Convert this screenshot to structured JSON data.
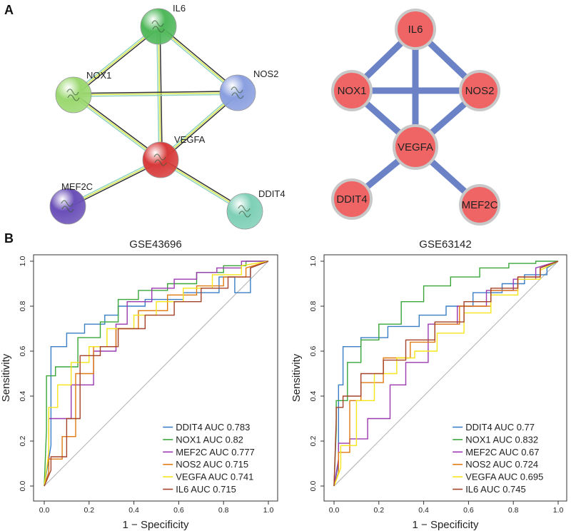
{
  "panel_labels": {
    "a": "A",
    "b": "B"
  },
  "colors": {
    "edge_blue": "#6b82c7",
    "node_red": "#ef6464",
    "node_border": "#c8c8c8",
    "diag": "#b0b0b0",
    "DDIT4": "#3a7fc5",
    "NOX1": "#3aa63a",
    "MEF2C": "#9b3ab0",
    "NOS2": "#e07a10",
    "VEGFA": "#f5e51a",
    "IL6": "#a5422a"
  },
  "string_network": {
    "nodes": [
      {
        "id": "IL6",
        "label": "IL6",
        "color": "#4fb85a",
        "icon": "protein-structure-icon"
      },
      {
        "id": "NOX1",
        "label": "NOX1",
        "color": "#9bd870",
        "icon": "protein-structure-icon"
      },
      {
        "id": "NOS2",
        "label": "NOS2",
        "color": "#8a9fe0",
        "icon": "protein-structure-icon"
      },
      {
        "id": "VEGFA",
        "label": "VEGFA",
        "color": "#d83a3a",
        "icon": "protein-structure-icon"
      },
      {
        "id": "MEF2C",
        "label": "MEF2C",
        "color": "#6a4fb8",
        "icon": "protein-structure-icon"
      },
      {
        "id": "DDIT4",
        "label": "DDIT4",
        "color": "#7ecfb6",
        "icon": "protein-structure-icon"
      }
    ],
    "edges": [
      [
        "IL6",
        "NOX1"
      ],
      [
        "IL6",
        "NOS2"
      ],
      [
        "IL6",
        "VEGFA"
      ],
      [
        "NOX1",
        "NOS2"
      ],
      [
        "NOX1",
        "VEGFA"
      ],
      [
        "NOS2",
        "VEGFA"
      ],
      [
        "VEGFA",
        "MEF2C"
      ],
      [
        "VEGFA",
        "DDIT4"
      ]
    ]
  },
  "hub_network": {
    "nodes": [
      {
        "id": "IL6",
        "label": "IL6"
      },
      {
        "id": "NOX1",
        "label": "NOX1"
      },
      {
        "id": "NOS2",
        "label": "NOS2"
      },
      {
        "id": "VEGFA",
        "label": "VEGFA"
      },
      {
        "id": "DDIT4",
        "label": "DDIT4"
      },
      {
        "id": "MEF2C",
        "label": "MEF2C"
      }
    ],
    "edges": [
      [
        "IL6",
        "NOX1"
      ],
      [
        "IL6",
        "NOS2"
      ],
      [
        "IL6",
        "VEGFA"
      ],
      [
        "NOX1",
        "NOS2"
      ],
      [
        "NOX1",
        "VEGFA"
      ],
      [
        "NOS2",
        "VEGFA"
      ],
      [
        "VEGFA",
        "DDIT4"
      ],
      [
        "VEGFA",
        "MEF2C"
      ]
    ]
  },
  "chart_data": [
    {
      "type": "line",
      "title": "GSE43696",
      "xlabel": "1 − Specificity",
      "ylabel": "Sensitivity",
      "xlim": [
        0,
        1
      ],
      "ylim": [
        0,
        1
      ],
      "xticks": [
        "0.0",
        "0.2",
        "0.4",
        "0.6",
        "0.8",
        "1.0"
      ],
      "yticks": [
        "0.0",
        "0.2",
        "0.4",
        "0.6",
        "0.8",
        "1.0"
      ],
      "legend_position": "bottom-right",
      "series": [
        {
          "name": "DDIT4",
          "legend": "DDIT4 AUC 0.783",
          "color": "#3a7fc5",
          "x": [
            0,
            0.03,
            0.03,
            0.1,
            0.1,
            0.18,
            0.18,
            0.27,
            0.27,
            0.33,
            0.33,
            0.45,
            0.45,
            0.62,
            0.62,
            0.78,
            0.78,
            0.85,
            0.85,
            0.92,
            0.92,
            1
          ],
          "y": [
            0,
            0.18,
            0.62,
            0.62,
            0.68,
            0.68,
            0.72,
            0.72,
            0.76,
            0.76,
            0.8,
            0.8,
            0.83,
            0.83,
            0.86,
            0.86,
            0.93,
            0.93,
            0.86,
            0.86,
            0.97,
            1
          ]
        },
        {
          "name": "NOX1",
          "legend": "NOX1 AUC 0.82",
          "color": "#3aa63a",
          "x": [
            0,
            0.01,
            0.01,
            0.05,
            0.05,
            0.15,
            0.15,
            0.25,
            0.25,
            0.33,
            0.33,
            0.42,
            0.42,
            0.55,
            0.55,
            0.68,
            0.68,
            0.8,
            0.8,
            0.9,
            0.9,
            1
          ],
          "y": [
            0,
            0.25,
            0.49,
            0.49,
            0.53,
            0.53,
            0.66,
            0.66,
            0.73,
            0.73,
            0.83,
            0.83,
            0.87,
            0.87,
            0.9,
            0.9,
            0.95,
            0.95,
            0.98,
            0.98,
            1,
            1
          ]
        },
        {
          "name": "MEF2C",
          "legend": "MEF2C AUC 0.777",
          "color": "#9b3ab0",
          "x": [
            0,
            0.02,
            0.02,
            0.12,
            0.12,
            0.22,
            0.22,
            0.32,
            0.32,
            0.37,
            0.37,
            0.48,
            0.48,
            0.58,
            0.58,
            0.68,
            0.68,
            0.77,
            0.77,
            0.88,
            0.88,
            1
          ],
          "y": [
            0,
            0.06,
            0.3,
            0.3,
            0.45,
            0.45,
            0.6,
            0.6,
            0.72,
            0.72,
            0.82,
            0.82,
            0.88,
            0.88,
            0.92,
            0.92,
            0.95,
            0.95,
            0.97,
            0.97,
            1,
            1
          ]
        },
        {
          "name": "NOS2",
          "legend": "NOS2 AUC 0.715",
          "color": "#e07a10",
          "x": [
            0,
            0.02,
            0.02,
            0.08,
            0.08,
            0.14,
            0.14,
            0.22,
            0.22,
            0.32,
            0.32,
            0.42,
            0.42,
            0.55,
            0.55,
            0.68,
            0.68,
            0.8,
            0.8,
            0.9,
            0.9,
            1
          ],
          "y": [
            0,
            0.06,
            0.12,
            0.12,
            0.22,
            0.22,
            0.5,
            0.5,
            0.62,
            0.62,
            0.7,
            0.7,
            0.78,
            0.78,
            0.85,
            0.85,
            0.89,
            0.89,
            0.93,
            0.93,
            0.97,
            1
          ]
        },
        {
          "name": "VEGFA",
          "legend": "VEGFA AUC 0.741",
          "color": "#f5e51a",
          "x": [
            0,
            0.02,
            0.02,
            0.06,
            0.06,
            0.12,
            0.12,
            0.2,
            0.2,
            0.28,
            0.28,
            0.4,
            0.4,
            0.5,
            0.5,
            0.62,
            0.62,
            0.75,
            0.75,
            0.88,
            0.88,
            1
          ],
          "y": [
            0,
            0.15,
            0.35,
            0.35,
            0.45,
            0.45,
            0.55,
            0.55,
            0.62,
            0.62,
            0.7,
            0.7,
            0.76,
            0.76,
            0.82,
            0.82,
            0.88,
            0.88,
            0.94,
            0.94,
            0.98,
            1
          ]
        },
        {
          "name": "IL6",
          "legend": "IL6 AUC 0.715",
          "color": "#a5422a",
          "x": [
            0,
            0.03,
            0.03,
            0.1,
            0.1,
            0.16,
            0.16,
            0.25,
            0.25,
            0.33,
            0.33,
            0.45,
            0.45,
            0.58,
            0.58,
            0.7,
            0.7,
            0.82,
            0.82,
            0.92,
            0.92,
            1
          ],
          "y": [
            0,
            0.07,
            0.13,
            0.13,
            0.3,
            0.3,
            0.58,
            0.58,
            0.62,
            0.62,
            0.7,
            0.7,
            0.76,
            0.76,
            0.82,
            0.82,
            0.88,
            0.88,
            0.93,
            0.93,
            0.97,
            1
          ]
        }
      ]
    },
    {
      "type": "line",
      "title": "GSE63142",
      "xlabel": "1 − Specificity",
      "ylabel": "Sensitivity",
      "xlim": [
        0,
        1
      ],
      "ylim": [
        0,
        1
      ],
      "xticks": [
        "0.0",
        "0.2",
        "0.4",
        "0.6",
        "0.8",
        "1.0"
      ],
      "yticks": [
        "0.0",
        "0.2",
        "0.4",
        "0.6",
        "0.8",
        "1.0"
      ],
      "legend_position": "bottom-right",
      "series": [
        {
          "name": "DDIT4",
          "legend": "DDIT4 AUC 0.77",
          "color": "#3a7fc5",
          "x": [
            0,
            0.02,
            0.02,
            0.04,
            0.04,
            0.12,
            0.12,
            0.24,
            0.24,
            0.38,
            0.38,
            0.5,
            0.5,
            0.62,
            0.62,
            0.75,
            0.75,
            0.85,
            0.85,
            0.95,
            0.95,
            1
          ],
          "y": [
            0,
            0.1,
            0.45,
            0.45,
            0.62,
            0.62,
            0.66,
            0.66,
            0.71,
            0.71,
            0.76,
            0.76,
            0.8,
            0.8,
            0.86,
            0.86,
            0.9,
            0.9,
            0.94,
            0.94,
            0.97,
            1
          ]
        },
        {
          "name": "NOX1",
          "legend": "NOX1 AUC 0.832",
          "color": "#3aa63a",
          "x": [
            0,
            0.01,
            0.01,
            0.06,
            0.06,
            0.12,
            0.12,
            0.2,
            0.2,
            0.3,
            0.3,
            0.4,
            0.4,
            0.52,
            0.52,
            0.65,
            0.65,
            0.78,
            0.78,
            0.9,
            0.9,
            1
          ],
          "y": [
            0,
            0.25,
            0.38,
            0.38,
            0.55,
            0.55,
            0.65,
            0.65,
            0.72,
            0.72,
            0.82,
            0.82,
            0.89,
            0.89,
            0.93,
            0.93,
            0.97,
            0.97,
            0.99,
            0.99,
            1,
            1
          ]
        },
        {
          "name": "MEF2C",
          "legend": "MEF2C AUC 0.67",
          "color": "#9b3ab0",
          "x": [
            0,
            0.02,
            0.02,
            0.07,
            0.07,
            0.15,
            0.15,
            0.25,
            0.25,
            0.32,
            0.32,
            0.42,
            0.42,
            0.55,
            0.55,
            0.68,
            0.68,
            0.8,
            0.8,
            0.9,
            0.9,
            1
          ],
          "y": [
            0,
            0.12,
            0.19,
            0.19,
            0.21,
            0.21,
            0.3,
            0.3,
            0.45,
            0.45,
            0.55,
            0.55,
            0.72,
            0.72,
            0.8,
            0.8,
            0.87,
            0.87,
            0.92,
            0.92,
            0.97,
            1
          ]
        },
        {
          "name": "NOS2",
          "legend": "NOS2 AUC 0.724",
          "color": "#e07a10",
          "x": [
            0,
            0.02,
            0.02,
            0.07,
            0.07,
            0.12,
            0.12,
            0.22,
            0.22,
            0.34,
            0.34,
            0.45,
            0.45,
            0.56,
            0.56,
            0.7,
            0.7,
            0.82,
            0.82,
            0.92,
            0.92,
            1
          ],
          "y": [
            0,
            0.06,
            0.15,
            0.15,
            0.38,
            0.38,
            0.46,
            0.46,
            0.57,
            0.57,
            0.64,
            0.64,
            0.72,
            0.72,
            0.8,
            0.8,
            0.87,
            0.87,
            0.93,
            0.93,
            0.97,
            1
          ]
        },
        {
          "name": "VEGFA",
          "legend": "VEGFA AUC 0.695",
          "color": "#f5e51a",
          "x": [
            0,
            0.03,
            0.03,
            0.1,
            0.1,
            0.18,
            0.18,
            0.28,
            0.28,
            0.36,
            0.36,
            0.46,
            0.46,
            0.58,
            0.58,
            0.7,
            0.7,
            0.82,
            0.82,
            0.92,
            0.92,
            1
          ],
          "y": [
            0,
            0.08,
            0.18,
            0.18,
            0.38,
            0.38,
            0.5,
            0.5,
            0.57,
            0.57,
            0.6,
            0.6,
            0.68,
            0.68,
            0.77,
            0.77,
            0.85,
            0.85,
            0.92,
            0.92,
            0.96,
            1
          ]
        },
        {
          "name": "IL6",
          "legend": "IL6 AUC 0.745",
          "color": "#a5422a",
          "x": [
            0,
            0.01,
            0.01,
            0.04,
            0.04,
            0.12,
            0.12,
            0.22,
            0.22,
            0.32,
            0.32,
            0.45,
            0.45,
            0.58,
            0.58,
            0.7,
            0.7,
            0.82,
            0.82,
            0.92,
            0.92,
            1
          ],
          "y": [
            0,
            0.3,
            0.35,
            0.35,
            0.4,
            0.4,
            0.5,
            0.5,
            0.56,
            0.56,
            0.65,
            0.65,
            0.73,
            0.73,
            0.82,
            0.82,
            0.88,
            0.88,
            0.93,
            0.93,
            0.97,
            1
          ]
        }
      ]
    }
  ]
}
